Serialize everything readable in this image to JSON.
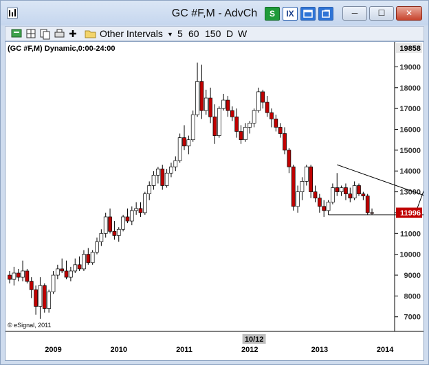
{
  "window": {
    "title": "GC #F,M - AdvCh",
    "colors": {
      "candle_up": "#ffffff",
      "candle_down": "#c00000",
      "price_tag": "#c00000",
      "frame": "#8ea4c2",
      "titlebar": "#cfdcee"
    }
  },
  "titlebar_buttons": [
    {
      "name": "S",
      "icon": "s-chart-icon"
    },
    {
      "name": "IX",
      "icon": "ix-icon"
    },
    {
      "name": "",
      "icon": "window-icon"
    },
    {
      "name": "",
      "icon": "link-icon"
    }
  ],
  "system_buttons": [
    {
      "label": "─",
      "icon": "minimize-icon"
    },
    {
      "label": "☐",
      "icon": "maximize-icon"
    },
    {
      "label": "✕",
      "icon": "close-icon"
    }
  ],
  "toolbar": {
    "icons": [
      "chain-icon",
      "grid-icon",
      "copy-icon",
      "print-icon",
      "plus-icon",
      "folder-icon"
    ],
    "intervals_label": "Other Intervals",
    "intervals": [
      "5",
      "60",
      "150",
      "D",
      "W"
    ]
  },
  "chart": {
    "header": "(GC #F,M) Dynamic,0:00-24:00",
    "top_price": "19858",
    "current_price": "11996",
    "watermark": "© eSignal, 2011",
    "cursor_label": "10/12"
  },
  "chart_data": {
    "type": "candlestick",
    "ylim": [
      6300,
      20200
    ],
    "y_ticks": [
      7000,
      8000,
      9000,
      10000,
      11000,
      12000,
      13000,
      14000,
      15000,
      16000,
      17000,
      18000,
      19000
    ],
    "y_tick_labels": [
      "7000",
      "8000",
      "9000",
      "10000",
      "11000",
      "12000",
      "13000",
      "14000",
      "15000",
      "16000",
      "17000",
      "18000",
      "19000"
    ],
    "x_labels": [
      {
        "label": "2009",
        "index": 10
      },
      {
        "label": "2010",
        "index": 25
      },
      {
        "label": "2011",
        "index": 40
      },
      {
        "label": "2012",
        "index": 55
      },
      {
        "label": "2013",
        "index": 71
      },
      {
        "label": "2014",
        "index": 86
      }
    ],
    "candles": [
      [
        9000,
        9200,
        8600,
        8800
      ],
      [
        8800,
        9400,
        8500,
        9100
      ],
      [
        9100,
        9300,
        8700,
        8900
      ],
      [
        8900,
        9700,
        8700,
        9200
      ],
      [
        9200,
        9300,
        8600,
        8700
      ],
      [
        8700,
        8900,
        7900,
        8300
      ],
      [
        8300,
        8500,
        7100,
        7500
      ],
      [
        7500,
        8900,
        6900,
        8500
      ],
      [
        8500,
        8600,
        7200,
        7400
      ],
      [
        7400,
        8300,
        7200,
        8200
      ],
      [
        8200,
        9200,
        8100,
        9000
      ],
      [
        9000,
        9500,
        8800,
        9300
      ],
      [
        9300,
        9800,
        9100,
        9200
      ],
      [
        9200,
        9700,
        8800,
        8900
      ],
      [
        8900,
        9400,
        8700,
        9200
      ],
      [
        9200,
        9800,
        9100,
        9500
      ],
      [
        9500,
        9900,
        9200,
        9300
      ],
      [
        9300,
        10200,
        9200,
        10000
      ],
      [
        10000,
        10300,
        9500,
        9600
      ],
      [
        9600,
        10200,
        9500,
        10100
      ],
      [
        10100,
        10800,
        10000,
        10600
      ],
      [
        10600,
        11200,
        10400,
        11000
      ],
      [
        11000,
        12000,
        10800,
        11800
      ],
      [
        11800,
        12200,
        11000,
        11100
      ],
      [
        11100,
        11600,
        10700,
        10900
      ],
      [
        10900,
        11300,
        10600,
        11200
      ],
      [
        11200,
        11900,
        11100,
        11800
      ],
      [
        11800,
        12200,
        11500,
        11600
      ],
      [
        11600,
        12300,
        11400,
        12100
      ],
      [
        12100,
        12500,
        11900,
        12200
      ],
      [
        12200,
        12500,
        11800,
        12000
      ],
      [
        12000,
        13000,
        11900,
        12900
      ],
      [
        12900,
        13500,
        12600,
        13300
      ],
      [
        13300,
        14000,
        13100,
        13800
      ],
      [
        13800,
        14200,
        13400,
        14100
      ],
      [
        14100,
        14300,
        13100,
        13300
      ],
      [
        13300,
        14100,
        13200,
        13900
      ],
      [
        13900,
        14400,
        13700,
        14200
      ],
      [
        14200,
        14700,
        14000,
        14500
      ],
      [
        14500,
        15800,
        14400,
        15600
      ],
      [
        15600,
        16200,
        15000,
        15200
      ],
      [
        15200,
        15700,
        14800,
        15500
      ],
      [
        15500,
        16900,
        15400,
        16700
      ],
      [
        16700,
        19200,
        16600,
        18300
      ],
      [
        18300,
        19100,
        16500,
        16900
      ],
      [
        16900,
        17900,
        16700,
        17500
      ],
      [
        17500,
        18000,
        16300,
        16600
      ],
      [
        16600,
        17200,
        15300,
        15700
      ],
      [
        15700,
        17100,
        15600,
        17000
      ],
      [
        17000,
        17700,
        16900,
        17400
      ],
      [
        17400,
        17600,
        16600,
        16900
      ],
      [
        16900,
        17100,
        16400,
        16600
      ],
      [
        16600,
        17000,
        15600,
        15900
      ],
      [
        15900,
        16200,
        15300,
        15500
      ],
      [
        15500,
        16300,
        15400,
        16100
      ],
      [
        16100,
        16400,
        15800,
        16300
      ],
      [
        16300,
        17000,
        16100,
        16900
      ],
      [
        16900,
        18000,
        16800,
        17800
      ],
      [
        17800,
        17900,
        17000,
        17300
      ],
      [
        17300,
        17600,
        16600,
        16800
      ],
      [
        16800,
        17000,
        16100,
        16500
      ],
      [
        16500,
        16700,
        15900,
        16100
      ],
      [
        16100,
        16300,
        15600,
        15800
      ],
      [
        15800,
        16100,
        14800,
        15000
      ],
      [
        15000,
        15100,
        13900,
        14200
      ],
      [
        14200,
        14300,
        12100,
        12300
      ],
      [
        12300,
        13300,
        12000,
        13000
      ],
      [
        13000,
        13700,
        12600,
        13500
      ],
      [
        13500,
        14300,
        13300,
        14200
      ],
      [
        14200,
        14300,
        12700,
        13000
      ],
      [
        13000,
        13300,
        12500,
        12700
      ],
      [
        12700,
        12900,
        12000,
        12300
      ],
      [
        12300,
        12600,
        11800,
        12100
      ],
      [
        12100,
        12600,
        11900,
        12500
      ],
      [
        12500,
        13400,
        12400,
        13200
      ],
      [
        13200,
        13900,
        12800,
        13000
      ],
      [
        13000,
        13300,
        12800,
        13200
      ],
      [
        13200,
        13400,
        12600,
        12900
      ],
      [
        12900,
        13200,
        12500,
        12700
      ],
      [
        12700,
        13500,
        12600,
        13300
      ],
      [
        13300,
        13400,
        12800,
        12900
      ],
      [
        12900,
        13000,
        12600,
        12800
      ],
      [
        12800,
        12900,
        11900,
        12000
      ],
      [
        12000,
        12200,
        11900,
        11996
      ]
    ],
    "trendlines": [
      {
        "from": [
          75,
          14300
        ],
        "to": [
          98,
          12600
        ]
      },
      {
        "from": [
          73,
          11900
        ],
        "to": [
          101,
          11900
        ]
      }
    ],
    "arrow": {
      "from": [
        93,
        12000
      ],
      "to": [
        96,
        13700
      ]
    },
    "grid": false
  }
}
